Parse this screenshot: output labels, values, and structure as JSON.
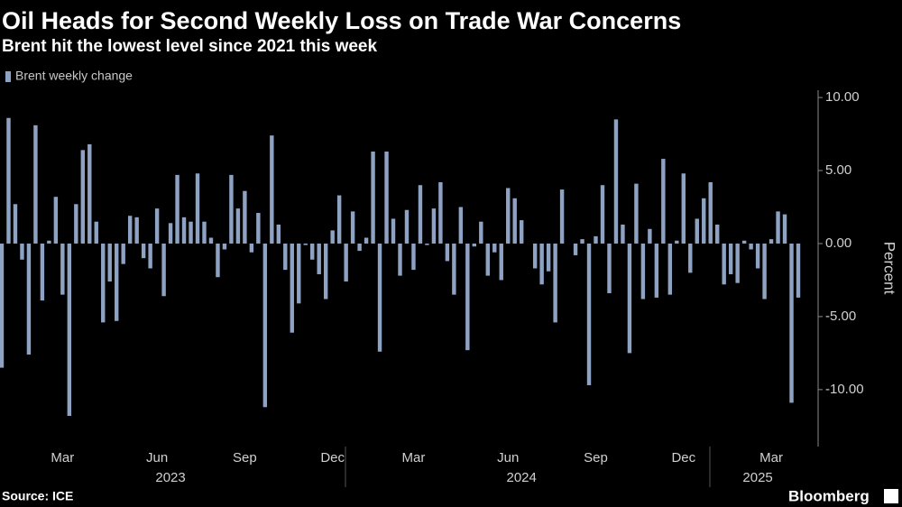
{
  "chart_data": {
    "type": "bar",
    "title": "Oil Heads for Second Weekly Loss on Trade War Concerns",
    "subtitle": "Brent hit the lowest level since 2021 this week",
    "source": "Source: ICE",
    "brand": "Bloomberg",
    "y_axis_label": "Percent",
    "series": [
      {
        "name": "Brent weekly change",
        "color": "#8ea3c4",
        "values": [
          -8.5,
          8.6,
          2.7,
          -1.1,
          -7.6,
          8.1,
          -3.9,
          0.2,
          3.2,
          -3.5,
          -11.8,
          2.7,
          6.4,
          6.8,
          1.5,
          -5.4,
          -2.6,
          -5.3,
          -1.4,
          1.9,
          1.8,
          -1.0,
          -1.7,
          2.4,
          -3.6,
          1.4,
          4.7,
          1.8,
          1.5,
          4.8,
          1.5,
          0.4,
          -2.3,
          -0.4,
          4.7,
          2.4,
          3.6,
          -0.6,
          2.1,
          -11.2,
          7.4,
          1.3,
          -1.8,
          -6.1,
          -4.1,
          -0.1,
          -1.1,
          -2.1,
          -3.8,
          0.9,
          3.3,
          -2.6,
          2.2,
          -0.5,
          0.4,
          6.3,
          -7.4,
          6.3,
          1.7,
          -2.2,
          2.3,
          -1.8,
          4.0,
          -0.1,
          2.4,
          4.2,
          -1.2,
          -3.5,
          2.5,
          -7.3,
          -0.2,
          1.5,
          -2.2,
          -0.6,
          -2.5,
          3.8,
          3.1,
          1.6,
          0,
          -1.7,
          -2.8,
          -1.9,
          -5.4,
          3.7,
          0,
          -0.8,
          0.3,
          -9.7,
          0.5,
          4.0,
          -3.4,
          8.5,
          1.3,
          -7.5,
          4.1,
          -3.8,
          1.0,
          -3.7,
          5.8,
          -3.5,
          0.2,
          4.8,
          -2.0,
          1.7,
          3.1,
          4.2,
          1.3,
          -2.8,
          -2.1,
          -2.7,
          0.2,
          -0.4,
          -1.7,
          -3.8,
          0.3,
          2.2,
          2.0,
          -10.9,
          -3.7
        ]
      }
    ],
    "categories": [
      null,
      null,
      null,
      null,
      null,
      null,
      null,
      null,
      null,
      "Mar",
      null,
      null,
      null,
      null,
      null,
      null,
      null,
      null,
      null,
      null,
      null,
      null,
      null,
      "Jun",
      null,
      null,
      null,
      null,
      null,
      null,
      null,
      null,
      null,
      null,
      null,
      null,
      "Sep",
      null,
      null,
      null,
      null,
      null,
      null,
      null,
      null,
      null,
      null,
      null,
      null,
      "Dec",
      null,
      null,
      null,
      null,
      null,
      null,
      null,
      null,
      null,
      null,
      null,
      "Mar",
      null,
      null,
      null,
      null,
      null,
      null,
      null,
      null,
      null,
      null,
      null,
      null,
      null,
      "Jun",
      null,
      null,
      null,
      null,
      null,
      null,
      null,
      null,
      null,
      null,
      null,
      null,
      "Sep",
      null,
      null,
      null,
      null,
      null,
      null,
      null,
      null,
      null,
      null,
      null,
      null,
      "Dec",
      null,
      null,
      null,
      null,
      null,
      null,
      null,
      null,
      null,
      null,
      null,
      null,
      "Mar",
      null,
      null,
      null,
      null
    ],
    "year_categories": [
      null,
      null,
      null,
      null,
      null,
      null,
      null,
      null,
      null,
      null,
      null,
      null,
      null,
      null,
      null,
      null,
      null,
      null,
      null,
      null,
      null,
      null,
      null,
      null,
      null,
      "2023",
      null,
      null,
      null,
      null,
      null,
      null,
      null,
      null,
      null,
      null,
      null,
      null,
      null,
      null,
      null,
      null,
      null,
      null,
      null,
      null,
      null,
      null,
      null,
      null,
      null,
      null,
      null,
      null,
      null,
      null,
      null,
      null,
      null,
      null,
      null,
      null,
      null,
      null,
      null,
      null,
      null,
      null,
      null,
      null,
      null,
      null,
      null,
      null,
      null,
      null,
      null,
      "2024",
      null,
      null,
      null,
      null,
      null,
      null,
      null,
      null,
      null,
      null,
      null,
      null,
      null,
      null,
      null,
      null,
      null,
      null,
      null,
      null,
      null,
      null,
      null,
      null,
      null,
      null,
      null,
      null,
      null,
      null,
      null,
      null,
      null,
      null,
      "2025",
      null,
      null,
      null,
      null,
      null,
      null
    ],
    "ylim": [
      -13.9,
      10.5
    ],
    "yticks": [
      {
        "value": 10,
        "label": "10.00"
      },
      {
        "value": 5,
        "label": "5.00"
      },
      {
        "value": 0,
        "label": "0.00"
      },
      {
        "value": -5,
        "label": "-5.00"
      },
      {
        "value": -10,
        "label": "-10.00"
      }
    ],
    "y_axis_side": "right"
  }
}
